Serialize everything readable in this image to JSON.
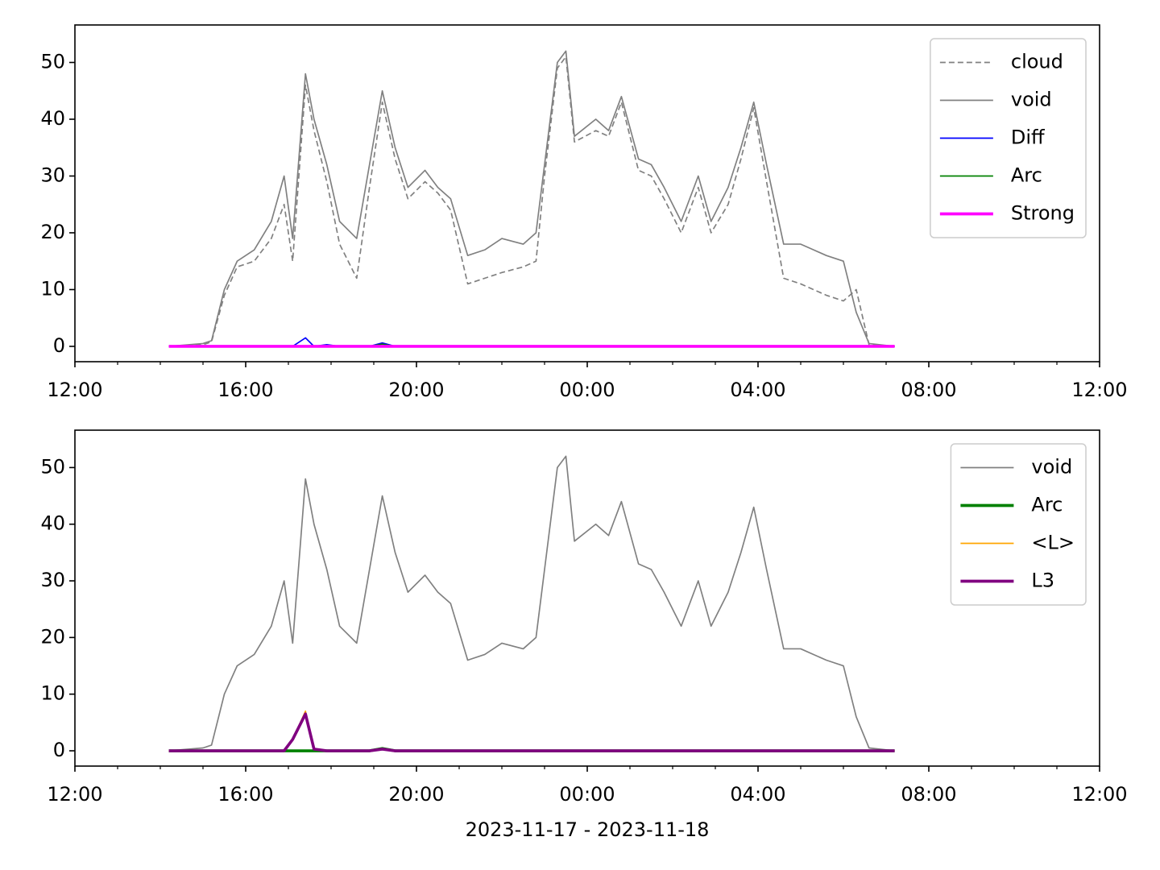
{
  "chart_data": [
    {
      "type": "line",
      "legend": "upper right",
      "x": [
        14.2,
        15.0,
        15.2,
        15.5,
        15.8,
        16.2,
        16.6,
        16.9,
        17.1,
        17.4,
        17.6,
        17.9,
        18.2,
        18.6,
        18.9,
        19.2,
        19.5,
        19.8,
        20.2,
        20.5,
        20.8,
        21.2,
        21.6,
        22.0,
        22.5,
        22.8,
        23.0,
        23.3,
        23.5,
        23.7,
        24.2,
        24.5,
        24.8,
        25.2,
        25.5,
        25.8,
        26.2,
        26.6,
        26.9,
        27.3,
        27.6,
        27.9,
        28.2,
        28.6,
        29.0,
        29.3,
        29.6,
        30.0,
        30.3,
        30.6,
        31.2
      ],
      "xlim": [
        12,
        36
      ],
      "xticks": [
        {
          "value": 12,
          "label": "12:00"
        },
        {
          "value": 16,
          "label": "16:00"
        },
        {
          "value": 20,
          "label": "20:00"
        },
        {
          "value": 24,
          "label": "00:00"
        },
        {
          "value": 28,
          "label": "04:00"
        },
        {
          "value": 32,
          "label": "08:00"
        },
        {
          "value": 36,
          "label": "12:00"
        }
      ],
      "xminorticks": [
        13,
        14,
        15,
        17,
        18,
        19,
        21,
        22,
        23,
        25,
        26,
        27,
        29,
        30,
        31,
        33,
        34,
        35
      ],
      "ylim": [
        -2.7,
        56.6
      ],
      "yticks": [
        0,
        10,
        20,
        30,
        40,
        50
      ],
      "series": [
        {
          "name": "cloud",
          "color": "#808080",
          "dash": true,
          "linewidth": 1.2,
          "values": [
            0,
            0.3,
            0.8,
            9,
            14,
            15,
            19,
            25,
            15,
            46,
            38,
            29,
            18,
            12,
            28,
            43,
            33,
            26,
            29,
            27,
            24,
            11,
            12,
            13,
            14,
            15,
            30,
            49,
            51,
            36,
            38,
            37,
            43,
            31,
            30,
            26,
            20,
            28,
            20,
            25,
            33,
            42,
            29,
            12,
            11,
            10,
            9,
            8,
            10,
            0.3,
            0
          ]
        },
        {
          "name": "void",
          "color": "#808080",
          "dash": false,
          "linewidth": 1.2,
          "values": [
            0,
            0.5,
            1,
            10,
            15,
            17,
            22,
            30,
            19,
            48,
            40,
            32,
            22,
            19,
            32,
            45,
            35,
            28,
            31,
            28,
            26,
            16,
            17,
            19,
            18,
            20,
            32,
            50,
            52,
            37,
            40,
            38,
            44,
            33,
            32,
            28,
            22,
            30,
            22,
            28,
            35,
            43,
            32,
            18,
            18,
            17,
            16,
            15,
            6,
            0.5,
            0
          ]
        },
        {
          "name": "Diff",
          "color": "#0000ff",
          "dash": false,
          "linewidth": 1.2,
          "values": [
            0,
            0,
            0,
            0,
            0,
            0,
            0,
            0,
            0,
            1.5,
            0,
            0.3,
            0,
            0,
            0,
            0.6,
            0,
            0,
            0,
            0,
            0,
            0,
            0,
            0,
            0,
            0,
            0,
            0,
            0,
            0,
            0,
            0,
            0,
            0,
            0,
            0,
            0,
            0,
            0,
            0,
            0,
            0,
            0,
            0,
            0,
            0,
            0,
            0,
            0,
            0,
            0
          ]
        },
        {
          "name": "Arc",
          "color": "#008000",
          "dash": false,
          "linewidth": 1.2,
          "values": [
            0,
            0,
            0,
            0,
            0,
            0,
            0,
            0,
            0,
            0,
            0,
            0,
            0,
            0,
            0,
            0.4,
            0,
            0,
            0,
            0,
            0,
            0,
            0,
            0,
            0,
            0,
            0,
            0,
            0,
            0,
            0,
            0,
            0,
            0,
            0,
            0,
            0,
            0,
            0,
            0,
            0,
            0,
            0,
            0,
            0,
            0,
            0,
            0,
            0,
            0,
            0
          ]
        },
        {
          "name": "Strong",
          "color": "#ff00ff",
          "dash": false,
          "linewidth": 2.6,
          "values": [
            0,
            0,
            0,
            0,
            0,
            0,
            0,
            0,
            0,
            0,
            0,
            0,
            0,
            0,
            0,
            0,
            0,
            0,
            0,
            0,
            0,
            0,
            0,
            0,
            0,
            0,
            0,
            0,
            0,
            0,
            0,
            0,
            0,
            0,
            0,
            0,
            0,
            0,
            0,
            0,
            0,
            0,
            0,
            0,
            0,
            0,
            0,
            0,
            0,
            0,
            0
          ]
        }
      ]
    },
    {
      "type": "line",
      "legend": "upper right",
      "xlabel": "2023-11-17 - 2023-11-18",
      "x": [
        14.2,
        15.0,
        15.2,
        15.5,
        15.8,
        16.2,
        16.6,
        16.9,
        17.1,
        17.4,
        17.6,
        17.9,
        18.2,
        18.6,
        18.9,
        19.2,
        19.5,
        19.8,
        20.2,
        20.5,
        20.8,
        21.2,
        21.6,
        22.0,
        22.5,
        22.8,
        23.0,
        23.3,
        23.5,
        23.7,
        24.2,
        24.5,
        24.8,
        25.2,
        25.5,
        25.8,
        26.2,
        26.6,
        26.9,
        27.3,
        27.6,
        27.9,
        28.2,
        28.6,
        29.0,
        29.3,
        29.6,
        30.0,
        30.3,
        30.6,
        31.2
      ],
      "xlim": [
        12,
        36
      ],
      "xticks": [
        {
          "value": 12,
          "label": "12:00"
        },
        {
          "value": 16,
          "label": "16:00"
        },
        {
          "value": 20,
          "label": "20:00"
        },
        {
          "value": 24,
          "label": "00:00"
        },
        {
          "value": 28,
          "label": "04:00"
        },
        {
          "value": 32,
          "label": "08:00"
        },
        {
          "value": 36,
          "label": "12:00"
        }
      ],
      "xminorticks": [
        13,
        14,
        15,
        17,
        18,
        19,
        21,
        22,
        23,
        25,
        26,
        27,
        29,
        30,
        31,
        33,
        34,
        35
      ],
      "ylim": [
        -2.7,
        56.6
      ],
      "yticks": [
        0,
        10,
        20,
        30,
        40,
        50
      ],
      "series": [
        {
          "name": "void",
          "color": "#808080",
          "dash": false,
          "linewidth": 1.2,
          "values": [
            0,
            0.5,
            1,
            10,
            15,
            17,
            22,
            30,
            19,
            48,
            40,
            32,
            22,
            19,
            32,
            45,
            35,
            28,
            31,
            28,
            26,
            16,
            17,
            19,
            18,
            20,
            32,
            50,
            52,
            37,
            40,
            38,
            44,
            33,
            32,
            28,
            22,
            30,
            22,
            28,
            35,
            43,
            32,
            18,
            18,
            17,
            16,
            15,
            6,
            0.5,
            0
          ]
        },
        {
          "name": "Arc",
          "color": "#008000",
          "dash": false,
          "linewidth": 2.6,
          "values": [
            0,
            0,
            0,
            0,
            0,
            0,
            0,
            0,
            0,
            0,
            0,
            0,
            0,
            0,
            0,
            0.4,
            0,
            0,
            0,
            0,
            0,
            0,
            0,
            0,
            0,
            0,
            0,
            0,
            0,
            0,
            0,
            0,
            0,
            0,
            0,
            0,
            0,
            0,
            0,
            0,
            0,
            0,
            0,
            0,
            0,
            0,
            0,
            0,
            0,
            0,
            0
          ]
        },
        {
          "name": "<L>",
          "color": "#ffa500",
          "dash": false,
          "linewidth": 1.2,
          "values": [
            0,
            0,
            0,
            0,
            0,
            0,
            0,
            0,
            2,
            7,
            0.3,
            0,
            0,
            0,
            0,
            0.3,
            0,
            0,
            0,
            0,
            0,
            0,
            0,
            0,
            0,
            0,
            0,
            0,
            0,
            0,
            0,
            0,
            0,
            0,
            0,
            0,
            0,
            0,
            0,
            0,
            0,
            0,
            0,
            0,
            0,
            0,
            0,
            0,
            0,
            0,
            0
          ]
        },
        {
          "name": "L3",
          "color": "#800080",
          "dash": false,
          "linewidth": 2.6,
          "values": [
            0,
            0,
            0,
            0,
            0,
            0,
            0,
            0,
            2,
            6.5,
            0.3,
            0,
            0,
            0,
            0,
            0.3,
            0,
            0,
            0,
            0,
            0,
            0,
            0,
            0,
            0,
            0,
            0,
            0,
            0,
            0,
            0,
            0,
            0,
            0,
            0,
            0,
            0,
            0,
            0,
            0,
            0,
            0,
            0,
            0,
            0,
            0,
            0,
            0,
            0,
            0,
            0
          ]
        }
      ]
    }
  ]
}
